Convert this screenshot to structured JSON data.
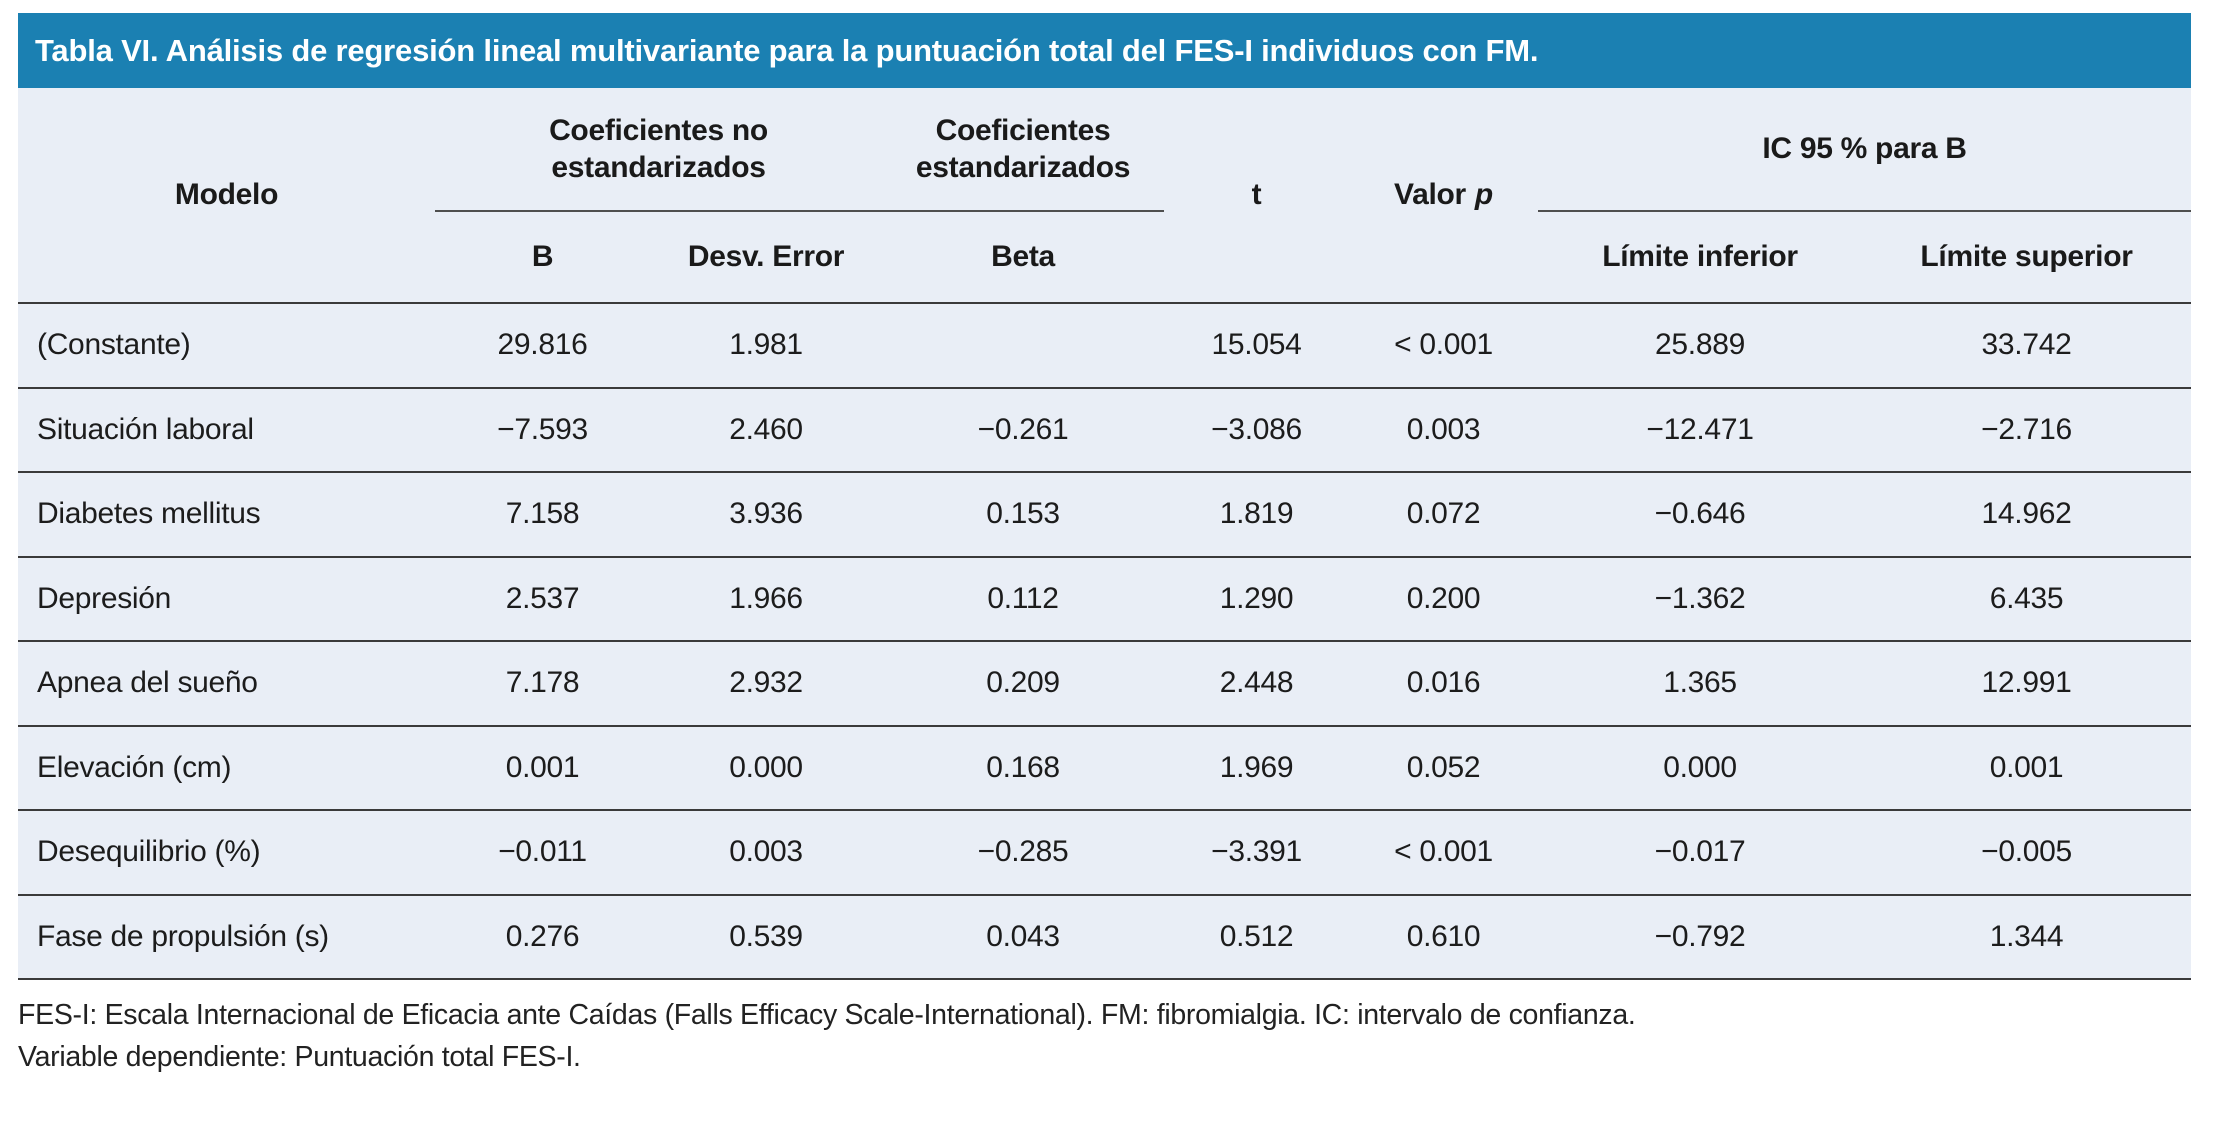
{
  "title": "Tabla VI. Análisis de regresión lineal multivariante para la puntuación total del FES-I individuos con FM.",
  "header": {
    "modelo": "Modelo",
    "coef_no_estandarizados": "Coeficientes no estandarizados",
    "coef_estandarizados": "Coeficientes estandarizados",
    "b": "B",
    "desv_error": "Desv. Error",
    "beta": "Beta",
    "t": "t",
    "valor": "Valor",
    "p": "p",
    "ic_95": "IC 95 % para B",
    "limite_inferior": "Límite inferior",
    "limite_superior": "Límite superior"
  },
  "rows": [
    {
      "modelo": "(Constante)",
      "b": "29.816",
      "desv_error": "1.981",
      "beta": "",
      "t": "15.054",
      "valor_p": "< 0.001",
      "limite_inferior": "25.889",
      "limite_superior": "33.742"
    },
    {
      "modelo": "Situación laboral",
      "b": "−7.593",
      "desv_error": "2.460",
      "beta": "−0.261",
      "t": "−3.086",
      "valor_p": "0.003",
      "limite_inferior": "−12.471",
      "limite_superior": "−2.716"
    },
    {
      "modelo": "Diabetes mellitus",
      "b": "7.158",
      "desv_error": "3.936",
      "beta": "0.153",
      "t": "1.819",
      "valor_p": "0.072",
      "limite_inferior": "−0.646",
      "limite_superior": "14.962"
    },
    {
      "modelo": "Depresión",
      "b": "2.537",
      "desv_error": "1.966",
      "beta": "0.112",
      "t": "1.290",
      "valor_p": "0.200",
      "limite_inferior": "−1.362",
      "limite_superior": "6.435"
    },
    {
      "modelo": "Apnea del sueño",
      "b": "7.178",
      "desv_error": "2.932",
      "beta": "0.209",
      "t": "2.448",
      "valor_p": "0.016",
      "limite_inferior": "1.365",
      "limite_superior": "12.991"
    },
    {
      "modelo": "Elevación (cm)",
      "b": "0.001",
      "desv_error": "0.000",
      "beta": "0.168",
      "t": "1.969",
      "valor_p": "0.052",
      "limite_inferior": "0.000",
      "limite_superior": "0.001"
    },
    {
      "modelo": "Desequilibrio (%)",
      "b": "−0.011",
      "desv_error": "0.003",
      "beta": "−0.285",
      "t": "−3.391",
      "valor_p": "< 0.001",
      "limite_inferior": "−0.017",
      "limite_superior": "−0.005"
    },
    {
      "modelo": "Fase de propulsión (s)",
      "b": "0.276",
      "desv_error": "0.539",
      "beta": "0.043",
      "t": "0.512",
      "valor_p": "0.610",
      "limite_inferior": "−0.792",
      "limite_superior": "1.344"
    }
  ],
  "footnotes": {
    "line1": "FES-I: Escala Internacional de Eficacia ante Caídas (Falls Efficacy Scale-International). FM: fibromialgia. IC: intervalo de confianza.",
    "line2": "Variable dependiente: Puntuación total FES-I."
  },
  "colors": {
    "title_bar": "#1b80b2",
    "title_text": "#ffffff",
    "table_background": "#e9eef6",
    "rule": "#3a3a3a",
    "body_text": "#1c1c1c"
  }
}
